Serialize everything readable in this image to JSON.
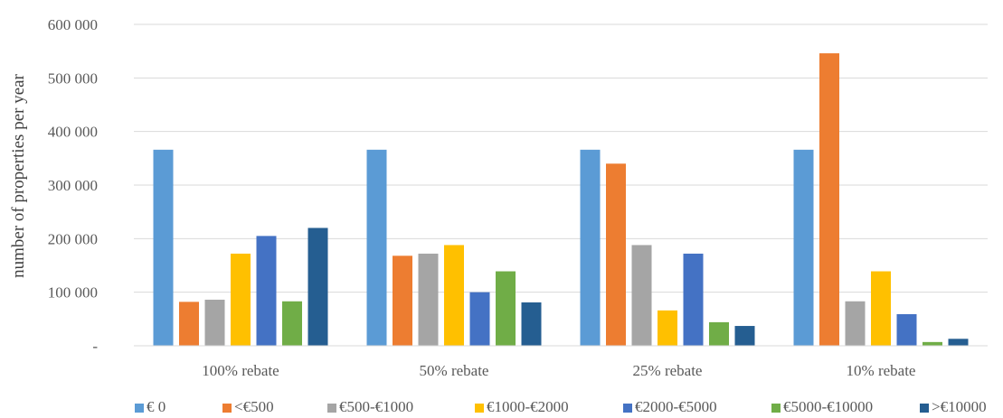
{
  "chart_data": {
    "type": "bar",
    "title": "",
    "xlabel": "",
    "ylabel": "number of properties per year",
    "ylim": [
      0,
      600000
    ],
    "yticks": [
      0,
      100000,
      200000,
      300000,
      400000,
      500000,
      600000
    ],
    "ytick_labels": [
      "-",
      "100 000",
      "200 000",
      "300 000",
      "400 000",
      "500 000",
      "600 000"
    ],
    "grid": true,
    "legend_position": "bottom",
    "categories": [
      "100% rebate",
      "50% rebate",
      "25% rebate",
      "10% rebate"
    ],
    "series": [
      {
        "name": "€ 0",
        "color": "#5B9BD5",
        "values": [
          366000,
          366000,
          366000,
          366000
        ]
      },
      {
        "name": "<€500",
        "color": "#ED7D31",
        "values": [
          82000,
          168000,
          340000,
          546000
        ]
      },
      {
        "name": "€500-€1000",
        "color": "#A5A5A5",
        "values": [
          86000,
          172000,
          188000,
          83000
        ]
      },
      {
        "name": "€1000-€2000",
        "color": "#FFC000",
        "values": [
          172000,
          188000,
          66000,
          139000
        ]
      },
      {
        "name": "€2000-€5000",
        "color": "#4472C4",
        "values": [
          205000,
          100000,
          172000,
          59000
        ]
      },
      {
        "name": "€5000-€10000",
        "color": "#70AD47",
        "values": [
          83000,
          139000,
          44000,
          7000
        ]
      },
      {
        "name": ">€10000",
        "color": "#255E91",
        "values": [
          220000,
          81000,
          37000,
          13000
        ]
      }
    ]
  }
}
